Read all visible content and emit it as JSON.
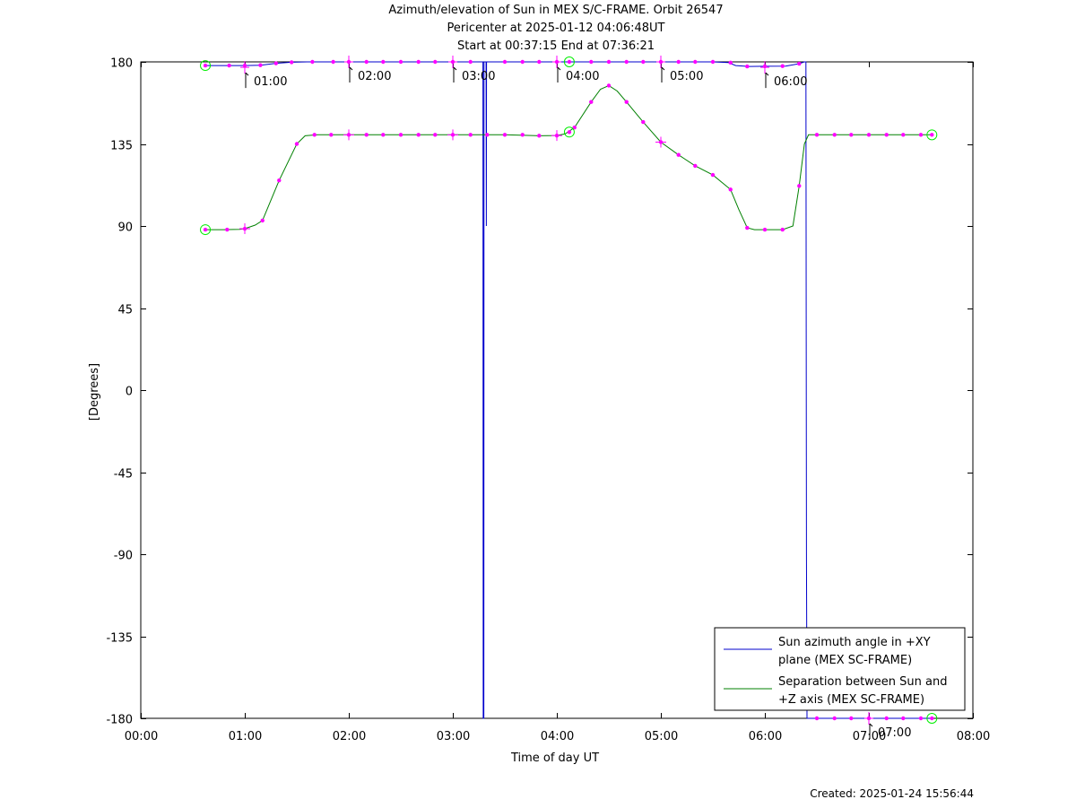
{
  "titles": {
    "line1": "Azimuth/elevation of Sun in MEX S/C-FRAME.  Orbit 26547",
    "line2": "Pericenter at 2025-01-12 04:06:48UT",
    "line3": "Start at 00:37:15 End at 07:36:21"
  },
  "created": "Created: 2025-01-24 15:56:44",
  "chart_data": {
    "type": "line",
    "xlabel": "Time of day UT",
    "ylabel": "[Degrees]",
    "xlim": [
      0,
      8
    ],
    "ylim": [
      -180,
      180
    ],
    "x_ticks": [
      {
        "v": 0,
        "label": "00:00"
      },
      {
        "v": 1,
        "label": "01:00"
      },
      {
        "v": 2,
        "label": "02:00"
      },
      {
        "v": 3,
        "label": "03:00"
      },
      {
        "v": 4,
        "label": "04:00"
      },
      {
        "v": 5,
        "label": "05:00"
      },
      {
        "v": 6,
        "label": "06:00"
      },
      {
        "v": 7,
        "label": "07:00"
      },
      {
        "v": 8,
        "label": "08:00"
      }
    ],
    "y_ticks": [
      {
        "v": 180,
        "label": "180"
      },
      {
        "v": 135,
        "label": "135"
      },
      {
        "v": 90,
        "label": "90"
      },
      {
        "v": 45,
        "label": "45"
      },
      {
        "v": 0,
        "label": "0"
      },
      {
        "v": -45,
        "label": "-45"
      },
      {
        "v": -90,
        "label": "-90"
      },
      {
        "v": -135,
        "label": "-135"
      },
      {
        "v": -180,
        "label": "-180"
      }
    ],
    "hour_annotations": [
      {
        "x": 1.0,
        "y": 177,
        "label": "01:00"
      },
      {
        "x": 2.0,
        "y": 180,
        "label": "02:00"
      },
      {
        "x": 3.0,
        "y": 180,
        "label": "03:00"
      },
      {
        "x": 4.0,
        "y": 180,
        "label": "04:00"
      },
      {
        "x": 5.0,
        "y": 180,
        "label": "05:00"
      },
      {
        "x": 6.0,
        "y": 177,
        "label": "06:00"
      },
      {
        "x": 7.0,
        "y": -180,
        "label": "07:00"
      }
    ],
    "legend_position": "bottom-right",
    "series": [
      {
        "name": "Sun azimuth angle in +XY plane (MEX SC-FRAME)",
        "legend_lines": [
          "Sun azimuth angle in +XY",
          "plane (MEX SC-FRAME)"
        ],
        "color": "#0000cc",
        "points": [
          [
            0.621,
            178
          ],
          [
            0.75,
            178
          ],
          [
            0.85,
            178
          ],
          [
            1.0,
            178
          ],
          [
            1.15,
            178.2
          ],
          [
            1.3,
            179.2
          ],
          [
            1.45,
            179.8
          ],
          [
            1.6,
            180
          ],
          [
            2.0,
            180
          ],
          [
            2.5,
            180
          ],
          [
            3.0,
            180
          ],
          [
            3.29,
            180
          ],
          [
            3.292,
            -180
          ],
          [
            3.298,
            -180
          ],
          [
            3.3,
            180
          ],
          [
            3.32,
            180
          ],
          [
            3.322,
            90
          ],
          [
            3.324,
            180
          ],
          [
            3.5,
            180
          ],
          [
            4.0,
            180
          ],
          [
            4.12,
            180
          ],
          [
            4.5,
            180
          ],
          [
            5.0,
            180
          ],
          [
            5.5,
            180
          ],
          [
            5.65,
            179.6
          ],
          [
            5.72,
            178
          ],
          [
            5.85,
            177.5
          ],
          [
            6.0,
            177.6
          ],
          [
            6.2,
            177.7
          ],
          [
            6.33,
            179
          ],
          [
            6.38,
            180
          ],
          [
            6.395,
            180
          ],
          [
            6.4,
            -90
          ],
          [
            6.405,
            -180
          ],
          [
            7.0,
            -180
          ],
          [
            7.606,
            -180
          ]
        ],
        "markers": [
          [
            0.621,
            178
          ],
          [
            0.85,
            178
          ],
          [
            1.0,
            178
          ],
          [
            1.15,
            178.2
          ],
          [
            1.3,
            179.2
          ],
          [
            1.45,
            179.8
          ],
          [
            1.65,
            180
          ],
          [
            1.85,
            180
          ],
          [
            2.0,
            180
          ],
          [
            2.17,
            180
          ],
          [
            2.33,
            180
          ],
          [
            2.5,
            180
          ],
          [
            2.67,
            180
          ],
          [
            2.83,
            180
          ],
          [
            3.0,
            180
          ],
          [
            3.17,
            180
          ],
          [
            3.5,
            180
          ],
          [
            3.67,
            180
          ],
          [
            3.83,
            180
          ],
          [
            4.0,
            180
          ],
          [
            4.12,
            180
          ],
          [
            4.33,
            180
          ],
          [
            4.5,
            180
          ],
          [
            4.67,
            180
          ],
          [
            4.83,
            180
          ],
          [
            5.0,
            180
          ],
          [
            5.17,
            180
          ],
          [
            5.33,
            180
          ],
          [
            5.5,
            180
          ],
          [
            5.67,
            179.6
          ],
          [
            5.83,
            177.5
          ],
          [
            6.0,
            177.6
          ],
          [
            6.17,
            177.7
          ],
          [
            6.33,
            179
          ],
          [
            6.5,
            -180
          ],
          [
            6.67,
            -180
          ],
          [
            6.83,
            -180
          ],
          [
            7.0,
            -180
          ],
          [
            7.17,
            -180
          ],
          [
            7.33,
            -180
          ],
          [
            7.5,
            -180
          ],
          [
            7.606,
            -180
          ]
        ]
      },
      {
        "name": "Separation between Sun and +Z axis (MEX SC-FRAME)",
        "legend_lines": [
          "Separation between Sun and",
          "+Z axis (MEX SC-FRAME)"
        ],
        "color": "#008000",
        "points": [
          [
            0.621,
            88
          ],
          [
            0.8,
            88
          ],
          [
            0.95,
            88.2
          ],
          [
            1.0,
            88.5
          ],
          [
            1.1,
            90.5
          ],
          [
            1.17,
            93
          ],
          [
            1.33,
            115
          ],
          [
            1.5,
            135
          ],
          [
            1.58,
            139.5
          ],
          [
            1.7,
            140
          ],
          [
            2.0,
            140
          ],
          [
            2.5,
            140
          ],
          [
            3.0,
            140
          ],
          [
            3.5,
            140
          ],
          [
            3.83,
            139.5
          ],
          [
            4.0,
            139.6
          ],
          [
            4.08,
            140.5
          ],
          [
            4.17,
            144
          ],
          [
            4.33,
            158
          ],
          [
            4.42,
            165
          ],
          [
            4.5,
            167
          ],
          [
            4.58,
            164
          ],
          [
            4.67,
            158
          ],
          [
            4.83,
            147
          ],
          [
            5.0,
            136
          ],
          [
            5.17,
            129
          ],
          [
            5.33,
            123
          ],
          [
            5.5,
            118
          ],
          [
            5.67,
            110
          ],
          [
            5.75,
            99
          ],
          [
            5.83,
            89
          ],
          [
            5.9,
            88
          ],
          [
            6.0,
            88
          ],
          [
            6.17,
            88
          ],
          [
            6.27,
            90
          ],
          [
            6.33,
            112
          ],
          [
            6.38,
            135
          ],
          [
            6.42,
            140
          ],
          [
            6.5,
            140
          ],
          [
            7.0,
            140
          ],
          [
            7.606,
            140
          ]
        ],
        "markers": [
          [
            0.621,
            88
          ],
          [
            0.83,
            88
          ],
          [
            1.0,
            88.5
          ],
          [
            1.17,
            93
          ],
          [
            1.33,
            115
          ],
          [
            1.5,
            135
          ],
          [
            1.67,
            140
          ],
          [
            1.83,
            140
          ],
          [
            2.0,
            140
          ],
          [
            2.17,
            140
          ],
          [
            2.33,
            140
          ],
          [
            2.5,
            140
          ],
          [
            2.67,
            140
          ],
          [
            2.83,
            140
          ],
          [
            3.0,
            140
          ],
          [
            3.17,
            140
          ],
          [
            3.33,
            140
          ],
          [
            3.5,
            140
          ],
          [
            3.67,
            140
          ],
          [
            3.83,
            139.5
          ],
          [
            4.0,
            139.6
          ],
          [
            4.12,
            141.5
          ],
          [
            4.17,
            144
          ],
          [
            4.33,
            158
          ],
          [
            4.5,
            167
          ],
          [
            4.67,
            158
          ],
          [
            4.83,
            147
          ],
          [
            5.0,
            136
          ],
          [
            5.17,
            129
          ],
          [
            5.33,
            123
          ],
          [
            5.5,
            118
          ],
          [
            5.67,
            110
          ],
          [
            5.83,
            89
          ],
          [
            6.0,
            88
          ],
          [
            6.17,
            88
          ],
          [
            6.33,
            112
          ],
          [
            6.5,
            140
          ],
          [
            6.67,
            140
          ],
          [
            6.83,
            140
          ],
          [
            7.0,
            140
          ],
          [
            7.17,
            140
          ],
          [
            7.33,
            140
          ],
          [
            7.5,
            140
          ],
          [
            7.606,
            140
          ]
        ],
        "hour_crosses": [
          [
            1.0,
            88.5
          ],
          [
            2.0,
            140
          ],
          [
            3.0,
            140
          ],
          [
            4.0,
            139.6
          ],
          [
            5.0,
            136
          ]
        ]
      }
    ],
    "endpoint_circles": [
      [
        0.621,
        178
      ],
      [
        0.621,
        88
      ],
      [
        4.12,
        180
      ],
      [
        4.12,
        141.5
      ],
      [
        7.606,
        140
      ],
      [
        7.606,
        -180
      ]
    ]
  }
}
